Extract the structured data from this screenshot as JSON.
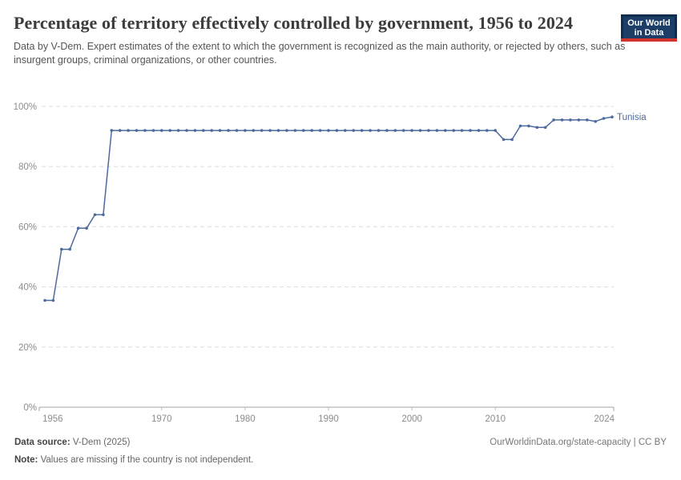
{
  "header": {
    "title": "Percentage of territory effectively controlled by government, 1956 to 2024",
    "subtitle": "Data by V-Dem. Expert estimates of the extent to which the government is recognized as the main authority, or rejected by others, such as insurgent groups, criminal organizations, or other countries.",
    "logo": {
      "line1": "Our World",
      "line2": "in Data"
    }
  },
  "footer": {
    "source_label": "Data source:",
    "source_value": "V-Dem (2025)",
    "note_label": "Note:",
    "note_value": "Values are missing if the country is not independent.",
    "link": "OurWorldinData.org/state-capacity | CC BY"
  },
  "colors": {
    "line": "#4c6a9c",
    "gridline": "#dcdcdc",
    "axis": "#a3a3a3",
    "tick": "#bfbfbf",
    "tick_label": "#8c8c8c",
    "logo_navy": "#0f2b4e",
    "logo_red": "#d0342c"
  },
  "chart_data": {
    "type": "line",
    "title": "Percentage of territory effectively controlled by government, 1956 to 2024",
    "xlabel": "",
    "ylabel": "",
    "xlim": [
      1956,
      2024
    ],
    "ylim": [
      0,
      100
    ],
    "grid": "horizontal-dashed",
    "legend": "end-of-line-label",
    "yticks": [
      0,
      20,
      40,
      60,
      80,
      100
    ],
    "ytick_suffix": "%",
    "xticks": [
      1956,
      1970,
      1980,
      1990,
      2000,
      2010,
      2024
    ],
    "series": [
      {
        "name": "Tunisia",
        "color": "#4c6a9c",
        "x": [
          1956,
          1957,
          1958,
          1959,
          1960,
          1961,
          1962,
          1963,
          1964,
          1965,
          1966,
          1967,
          1968,
          1969,
          1970,
          1971,
          1972,
          1973,
          1974,
          1975,
          1976,
          1977,
          1978,
          1979,
          1980,
          1981,
          1982,
          1983,
          1984,
          1985,
          1986,
          1987,
          1988,
          1989,
          1990,
          1991,
          1992,
          1993,
          1994,
          1995,
          1996,
          1997,
          1998,
          1999,
          2000,
          2001,
          2002,
          2003,
          2004,
          2005,
          2006,
          2007,
          2008,
          2009,
          2010,
          2011,
          2012,
          2013,
          2014,
          2015,
          2016,
          2017,
          2018,
          2019,
          2020,
          2021,
          2022,
          2023,
          2024
        ],
        "values": [
          35.5,
          35.5,
          52.5,
          52.5,
          59.5,
          59.5,
          64,
          64,
          92,
          92,
          92,
          92,
          92,
          92,
          92,
          92,
          92,
          92,
          92,
          92,
          92,
          92,
          92,
          92,
          92,
          92,
          92,
          92,
          92,
          92,
          92,
          92,
          92,
          92,
          92,
          92,
          92,
          92,
          92,
          92,
          92,
          92,
          92,
          92,
          92,
          92,
          92,
          92,
          92,
          92,
          92,
          92,
          92,
          92,
          92,
          89,
          89,
          93.5,
          93.5,
          93,
          93,
          95.5,
          95.5,
          95.5,
          95.5,
          95.5,
          95,
          96,
          96.5
        ]
      }
    ]
  }
}
